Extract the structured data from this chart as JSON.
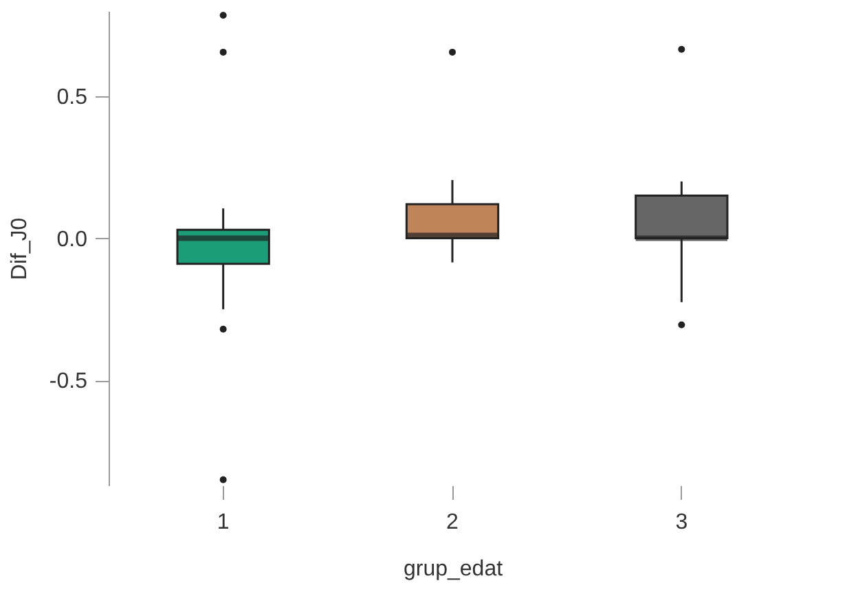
{
  "chart_data": {
    "type": "box",
    "xlabel": "grup_edat",
    "ylabel": "Dif_J0",
    "categories": [
      "1",
      "2",
      "3"
    ],
    "colors": [
      "#1b9e77",
      "#c0845a",
      "#666666"
    ],
    "boxes": [
      {
        "low": -0.25,
        "q1": -0.09,
        "median": 0.0,
        "q3": 0.03,
        "high": 0.105,
        "outliers": [
          0.785,
          0.655,
          -0.32,
          -0.85
        ]
      },
      {
        "low": -0.085,
        "q1": 0.0,
        "median": 0.01,
        "q3": 0.12,
        "high": 0.205,
        "outliers": [
          0.655
        ]
      },
      {
        "low": -0.225,
        "q1": 0.0,
        "median": 0.0,
        "q3": 0.15,
        "high": 0.2,
        "outliers": [
          0.665,
          -0.305
        ]
      }
    ],
    "ylim": [
      -0.87,
      0.8
    ],
    "yticks": [
      -0.5,
      {
        "value": 0,
        "label": "0.0"
      },
      0.5
    ]
  }
}
